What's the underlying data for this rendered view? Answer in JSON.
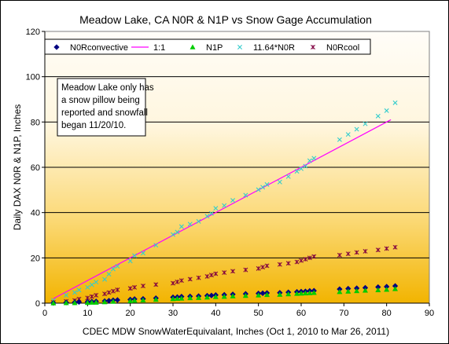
{
  "chart_data": {
    "type": "scatter",
    "title": "Meadow Lake, CA N0R & N1P  vs Snow Gage Accumulation",
    "xlabel": "CDEC MDW SnowWaterEquivalant, Inches (Oct 1, 2010 to Mar 26, 2011)",
    "ylabel": "Daily DAX N0R & N1P, Inches",
    "xlim": [
      0,
      90
    ],
    "ylim": [
      0,
      120
    ],
    "x_ticks": [
      "0",
      "10",
      "20",
      "30",
      "40",
      "50",
      "60",
      "70",
      "80",
      "90"
    ],
    "y_ticks": [
      "0",
      "20",
      "40",
      "60",
      "80",
      "100",
      "120"
    ],
    "grid": "horizontal",
    "legend_position": "top",
    "annotation": [
      "Meadow Lake only has",
      "a snow pillow being",
      "reported and snowfall",
      "began 11/20/10."
    ],
    "colors": {
      "background_top": "#fffdf8",
      "background_bottom": "#f2b400",
      "n0r_convective": "#000080",
      "one_to_one": "#ff00ff",
      "n1p": "#00cc00",
      "scaled_n0r": "#33cccc",
      "n0r_cool": "#800040"
    },
    "series": [
      {
        "name": "N0Rconvective",
        "marker": "diamond",
        "points": [
          [
            2,
            0.1
          ],
          [
            5,
            0.3
          ],
          [
            7,
            0.4
          ],
          [
            8,
            0.5
          ],
          [
            10,
            0.6
          ],
          [
            11,
            0.7
          ],
          [
            12,
            0.8
          ],
          [
            14,
            0.9
          ],
          [
            15,
            1.1
          ],
          [
            16,
            1.3
          ],
          [
            17,
            1.4
          ],
          [
            20,
            1.6
          ],
          [
            21,
            1.8
          ],
          [
            23,
            1.9
          ],
          [
            26,
            2.2
          ],
          [
            30,
            2.6
          ],
          [
            31,
            2.7
          ],
          [
            32,
            2.9
          ],
          [
            34,
            3.0
          ],
          [
            36,
            3.1
          ],
          [
            38,
            3.3
          ],
          [
            39,
            3.4
          ],
          [
            40,
            3.6
          ],
          [
            42,
            3.7
          ],
          [
            44,
            3.9
          ],
          [
            47,
            4.1
          ],
          [
            50,
            4.3
          ],
          [
            51,
            4.4
          ],
          [
            52,
            4.5
          ],
          [
            55,
            4.6
          ],
          [
            57,
            4.8
          ],
          [
            59,
            5.0
          ],
          [
            60,
            5.1
          ],
          [
            61,
            5.2
          ],
          [
            62,
            5.4
          ],
          [
            63,
            5.5
          ],
          [
            69,
            6.2
          ],
          [
            71,
            6.4
          ],
          [
            73,
            6.6
          ],
          [
            75,
            6.8
          ],
          [
            78,
            7.1
          ],
          [
            80,
            7.3
          ],
          [
            82,
            7.6
          ]
        ]
      },
      {
        "name": "1:1",
        "marker": "line",
        "points": [
          [
            2,
            2
          ],
          [
            81,
            81
          ]
        ]
      },
      {
        "name": "N1P",
        "marker": "triangle",
        "points": [
          [
            2,
            0
          ],
          [
            5,
            0.1
          ],
          [
            7,
            0.1
          ],
          [
            10,
            0.2
          ],
          [
            11,
            0.3
          ],
          [
            12,
            0.3
          ],
          [
            14,
            0.5
          ],
          [
            16,
            0.7
          ],
          [
            20,
            1.0
          ],
          [
            21,
            1.2
          ],
          [
            23,
            1.3
          ],
          [
            26,
            1.6
          ],
          [
            30,
            1.9
          ],
          [
            31,
            2.0
          ],
          [
            32,
            2.1
          ],
          [
            34,
            2.3
          ],
          [
            36,
            2.4
          ],
          [
            38,
            2.6
          ],
          [
            40,
            2.8
          ],
          [
            42,
            2.9
          ],
          [
            44,
            3.1
          ],
          [
            47,
            3.3
          ],
          [
            50,
            3.5
          ],
          [
            52,
            3.7
          ],
          [
            55,
            3.8
          ],
          [
            57,
            4.0
          ],
          [
            59,
            4.2
          ],
          [
            60,
            4.3
          ],
          [
            61,
            4.4
          ],
          [
            62,
            4.5
          ],
          [
            63,
            4.6
          ],
          [
            69,
            5.0
          ],
          [
            71,
            5.2
          ],
          [
            73,
            5.4
          ],
          [
            75,
            5.6
          ],
          [
            78,
            5.8
          ],
          [
            80,
            6.0
          ],
          [
            82,
            6.3
          ]
        ]
      },
      {
        "name": "11.64*N0R",
        "marker": "x",
        "points": [
          [
            2,
            1.2
          ],
          [
            5,
            3.5
          ],
          [
            7,
            4.7
          ],
          [
            8,
            5.8
          ],
          [
            10,
            7.0
          ],
          [
            11,
            8.1
          ],
          [
            12,
            9.3
          ],
          [
            14,
            10.5
          ],
          [
            15,
            12.8
          ],
          [
            16,
            15.1
          ],
          [
            17,
            16.3
          ],
          [
            20,
            18.6
          ],
          [
            21,
            21.0
          ],
          [
            23,
            22.1
          ],
          [
            26,
            25.6
          ],
          [
            30,
            30.3
          ],
          [
            31,
            31.4
          ],
          [
            32,
            33.8
          ],
          [
            34,
            34.9
          ],
          [
            36,
            36.1
          ],
          [
            38,
            38.4
          ],
          [
            39,
            39.6
          ],
          [
            40,
            41.9
          ],
          [
            42,
            43.1
          ],
          [
            44,
            45.4
          ],
          [
            47,
            47.7
          ],
          [
            50,
            50.1
          ],
          [
            51,
            51.2
          ],
          [
            52,
            52.4
          ],
          [
            55,
            53.5
          ],
          [
            57,
            55.9
          ],
          [
            59,
            58.2
          ],
          [
            60,
            59.4
          ],
          [
            61,
            60.5
          ],
          [
            62,
            62.9
          ],
          [
            63,
            64.0
          ],
          [
            69,
            72.2
          ],
          [
            71,
            74.5
          ],
          [
            73,
            76.8
          ],
          [
            75,
            79.2
          ],
          [
            78,
            82.6
          ],
          [
            80,
            85.0
          ],
          [
            82,
            88.5
          ]
        ]
      },
      {
        "name": "N0Rcool",
        "marker": "asterisk",
        "points": [
          [
            2,
            0.3
          ],
          [
            5,
            0.8
          ],
          [
            7,
            1.2
          ],
          [
            8,
            1.8
          ],
          [
            10,
            2.3
          ],
          [
            11,
            2.9
          ],
          [
            12,
            3.5
          ],
          [
            14,
            4.1
          ],
          [
            15,
            4.7
          ],
          [
            16,
            5.3
          ],
          [
            17,
            5.9
          ],
          [
            20,
            6.5
          ],
          [
            21,
            7.0
          ],
          [
            23,
            7.6
          ],
          [
            26,
            8.2
          ],
          [
            30,
            8.8
          ],
          [
            31,
            9.4
          ],
          [
            32,
            10.0
          ],
          [
            34,
            10.6
          ],
          [
            36,
            11.2
          ],
          [
            38,
            11.8
          ],
          [
            39,
            12.4
          ],
          [
            40,
            13.0
          ],
          [
            42,
            13.5
          ],
          [
            44,
            14.1
          ],
          [
            47,
            14.7
          ],
          [
            50,
            15.3
          ],
          [
            51,
            15.9
          ],
          [
            52,
            16.5
          ],
          [
            55,
            17.1
          ],
          [
            57,
            17.6
          ],
          [
            59,
            18.2
          ],
          [
            60,
            18.8
          ],
          [
            61,
            19.4
          ],
          [
            62,
            20.0
          ],
          [
            63,
            20.6
          ],
          [
            69,
            21.2
          ],
          [
            71,
            21.8
          ],
          [
            73,
            22.4
          ],
          [
            75,
            22.9
          ],
          [
            78,
            23.5
          ],
          [
            80,
            24.1
          ],
          [
            82,
            24.7
          ]
        ]
      }
    ]
  }
}
